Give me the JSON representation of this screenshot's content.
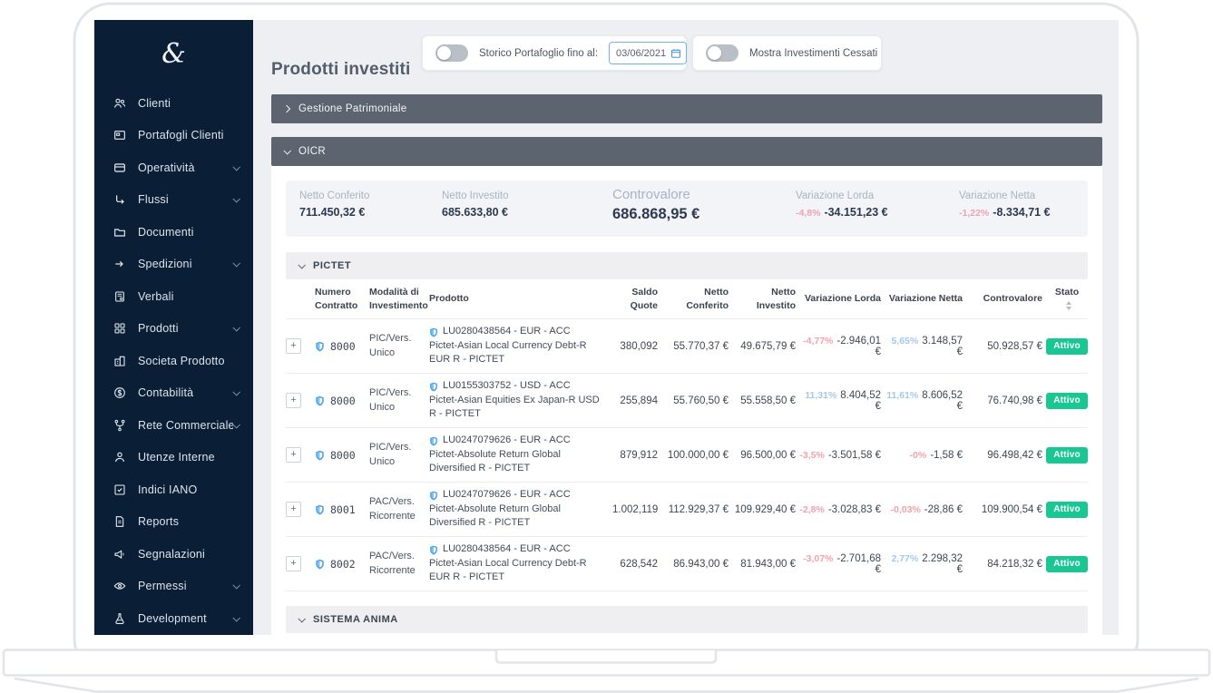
{
  "app_title": "Prodotti investiti",
  "header": {
    "storico_label": "Storico Portafoglio fino al:",
    "storico_date": "03/06/2021",
    "cessati_label": "Mostra Investimenti Cessati"
  },
  "sidebar": {
    "logo_glyph": "&",
    "items": [
      {
        "label": "Clienti",
        "icon": "users-icon",
        "icon_ref": "#i-users",
        "chevron": false
      },
      {
        "label": "Portafogli Clienti",
        "icon": "portfolio-icon",
        "icon_ref": "#i-card",
        "chevron": false
      },
      {
        "label": "Operatività",
        "icon": "wallet-icon",
        "icon_ref": "#i-wallet",
        "chevron": true
      },
      {
        "label": "Flussi",
        "icon": "flows-icon",
        "icon_ref": "#i-flow",
        "chevron": true
      },
      {
        "label": "Documenti",
        "icon": "folder-icon",
        "icon_ref": "#i-folder",
        "chevron": false
      },
      {
        "label": "Spedizioni",
        "icon": "send-arrow-icon",
        "icon_ref": "#i-send",
        "chevron": true
      },
      {
        "label": "Verbali",
        "icon": "minutes-doc-icon",
        "icon_ref": "#i-docuser",
        "chevron": false
      },
      {
        "label": "Prodotti",
        "icon": "grid-icon",
        "icon_ref": "#i-grid",
        "chevron": true
      },
      {
        "label": "Societa Prodotto",
        "icon": "company-icon",
        "icon_ref": "#i-building",
        "chevron": false
      },
      {
        "label": "Contabilità",
        "icon": "dollar-circle-icon",
        "icon_ref": "#i-dollar",
        "chevron": true
      },
      {
        "label": "Rete Commerciale",
        "icon": "network-icon",
        "icon_ref": "#i-branch",
        "chevron": true
      },
      {
        "label": "Utenze Interne",
        "icon": "user-icon",
        "icon_ref": "#i-user",
        "chevron": false
      },
      {
        "label": "Indici IANO",
        "icon": "check-square-icon",
        "icon_ref": "#i-check",
        "chevron": false
      },
      {
        "label": "Reports",
        "icon": "report-file-icon",
        "icon_ref": "#i-file",
        "chevron": false
      },
      {
        "label": "Segnalazioni",
        "icon": "megaphone-icon",
        "icon_ref": "#i-megaphone",
        "chevron": false
      },
      {
        "label": "Permessi",
        "icon": "eye-icon",
        "icon_ref": "#i-eye",
        "chevron": true
      },
      {
        "label": "Development",
        "icon": "flask-icon",
        "icon_ref": "#i-flask",
        "chevron": true
      }
    ]
  },
  "sections": {
    "gestione": "Gestione Patrimoniale",
    "oicr": "OICR",
    "pictet": "PICTET",
    "sistema_anima": "SISTEMA ANIMA"
  },
  "summary": {
    "stats": [
      {
        "label": "Netto Conferito",
        "value": "711.450,32 €"
      },
      {
        "label": "Netto Investito",
        "value": "685.633,80 €"
      },
      {
        "label": "Controvalore",
        "value": "686.868,95 €",
        "size": "big"
      },
      {
        "label": "Variazione Lorda",
        "value": "-34.151,23 €",
        "pct": "-4,8%",
        "dir": "neg"
      },
      {
        "label": "Variazione Netta",
        "value": "-8.334,71 €",
        "pct": "-1,22%",
        "dir": "neg"
      }
    ]
  },
  "table": {
    "expand_glyph": "+",
    "columns": [
      {
        "label1": "",
        "label2": "",
        "align": "left"
      },
      {
        "label1": "Numero",
        "label2": "Contratto",
        "align": "left"
      },
      {
        "label1": "Modalità di",
        "label2": "Investimento",
        "align": "left"
      },
      {
        "label1": "Prodotto",
        "label2": "",
        "align": "left"
      },
      {
        "label1": "Saldo",
        "label2": "Quote",
        "align": "right"
      },
      {
        "label1": "Netto",
        "label2": "Conferito",
        "align": "right"
      },
      {
        "label1": "Netto",
        "label2": "Investito",
        "align": "right"
      },
      {
        "label1": "Variazione Lorda",
        "label2": "",
        "align": "right"
      },
      {
        "label1": "Variazione Netta",
        "label2": "",
        "align": "right"
      },
      {
        "label1": "Controvalore",
        "label2": "",
        "align": "right"
      },
      {
        "label1": "Stato",
        "label2": "",
        "align": "center",
        "sortable": true
      }
    ],
    "rows": [
      {
        "contract": "8000",
        "modalita": "PIC/Vers. Unico",
        "isin": "LU0280438564 - EUR - ACC",
        "product": "Pictet-Asian Local Currency Debt-R EUR R - PICTET",
        "saldo": "380,092",
        "netto_conferito": "55.770,37 €",
        "netto_investito": "49.675,79 €",
        "var_lorda_pct": "-4,77%",
        "var_lorda_dir": "neg",
        "var_lorda_val": "-2.946,01 €",
        "var_netta_pct": "5,65%",
        "var_netta_dir": "pos",
        "var_netta_val": "3.148,57 €",
        "controvalore": "50.928,57 €",
        "stato": "Attivo"
      },
      {
        "contract": "8000",
        "modalita": "PIC/Vers. Unico",
        "isin": "LU0155303752 - USD - ACC",
        "product": "Pictet-Asian Equities Ex Japan-R USD R - PICTET",
        "saldo": "255,894",
        "netto_conferito": "55.760,50 €",
        "netto_investito": "55.558,50 €",
        "var_lorda_pct": "11,31%",
        "var_lorda_dir": "pos",
        "var_lorda_val": "8.404,52 €",
        "var_netta_pct": "11,61%",
        "var_netta_dir": "pos",
        "var_netta_val": "8.606,52 €",
        "controvalore": "76.740,98 €",
        "stato": "Attivo"
      },
      {
        "contract": "8000",
        "modalita": "PIC/Vers. Unico",
        "isin": "LU0247079626 - EUR - ACC",
        "product": "Pictet-Absolute Return Global Diversified R - PICTET",
        "saldo": "879,912",
        "netto_conferito": "100.000,00 €",
        "netto_investito": "96.500,00 €",
        "var_lorda_pct": "-3,5%",
        "var_lorda_dir": "neg",
        "var_lorda_val": "-3.501,58 €",
        "var_netta_pct": "-0%",
        "var_netta_dir": "neg",
        "var_netta_val": "-1,58 €",
        "controvalore": "96.498,42 €",
        "stato": "Attivo"
      },
      {
        "contract": "8001",
        "modalita": "PAC/Vers. Ricorrente",
        "isin": "LU0247079626 - EUR - ACC",
        "product": "Pictet-Absolute Return Global Diversified R - PICTET",
        "saldo": "1.002,119",
        "netto_conferito": "112.929,37 €",
        "netto_investito": "109.929,40 €",
        "var_lorda_pct": "-2,8%",
        "var_lorda_dir": "neg",
        "var_lorda_val": "-3.028,83 €",
        "var_netta_pct": "-0,03%",
        "var_netta_dir": "neg",
        "var_netta_val": "-28,86 €",
        "controvalore": "109.900,54 €",
        "stato": "Attivo"
      },
      {
        "contract": "8002",
        "modalita": "PAC/Vers. Ricorrente",
        "isin": "LU0280438564 - EUR - ACC",
        "product": "Pictet-Asian Local Currency Debt-R EUR R - PICTET",
        "saldo": "628,542",
        "netto_conferito": "86.943,00 €",
        "netto_investito": "81.943,00 €",
        "var_lorda_pct": "-3,07%",
        "var_lorda_dir": "neg",
        "var_lorda_val": "-2.701,68 €",
        "var_netta_pct": "2,77%",
        "var_netta_dir": "pos",
        "var_netta_val": "2.298,32 €",
        "controvalore": "84.218,32 €",
        "stato": "Attivo"
      }
    ]
  },
  "colors": {
    "sidebar_bg": "#0a1e35",
    "section_bar_bg": "#5c6470",
    "main_bg": "#edeff3",
    "stats_card_bg": "#f2f4f8",
    "badge_green": "#19c795",
    "fab_blue": "#4486f4",
    "shield_blue": "#4aa3e8",
    "pct_negative": "#f0a3ac",
    "pct_positive": "#a4c9ec",
    "date_border_blue": "#74b3ea"
  }
}
